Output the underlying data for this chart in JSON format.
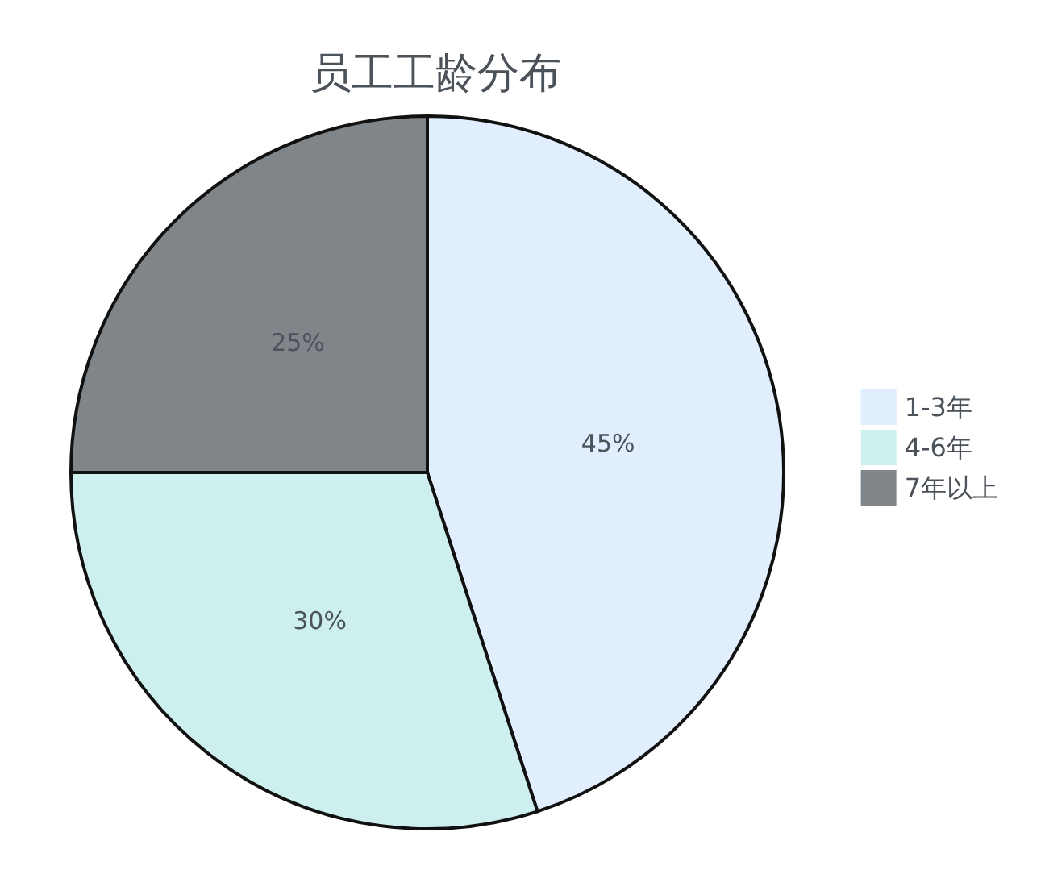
{
  "chart_data": {
    "type": "pie",
    "title": "员工工龄分布",
    "categories": [
      "1-3年",
      "4-6年",
      "7年以上"
    ],
    "values": [
      45,
      30,
      25
    ],
    "colors": [
      "#e0eefe",
      "#cdf0ee",
      "#808589"
    ],
    "value_labels": [
      "45%",
      "30%",
      "25%"
    ],
    "legend": "right"
  }
}
